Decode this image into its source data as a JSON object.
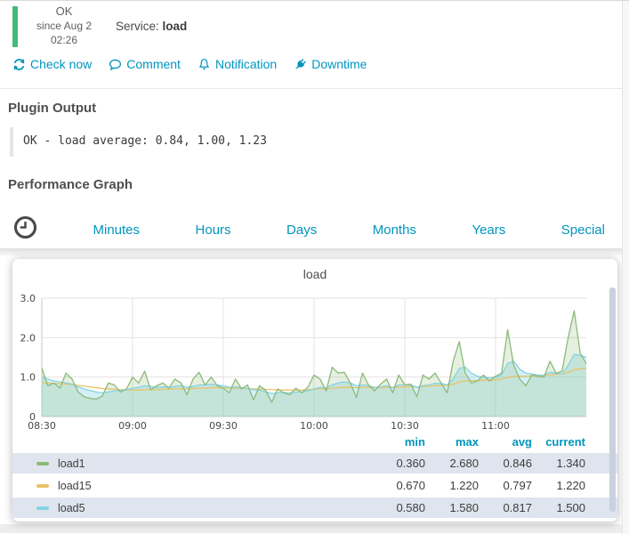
{
  "colors": {
    "status_green": "#44bb77",
    "link_blue": "#0095bf",
    "legend_row_bg": "#dfe5ee"
  },
  "status": {
    "state": "OK",
    "since_line1": "since Aug 2",
    "since_line2": "02:26",
    "service_label": "Service:",
    "service_name": "load"
  },
  "actions": [
    {
      "label": "Check now",
      "icon": "refresh-icon"
    },
    {
      "label": "Comment",
      "icon": "comment-icon"
    },
    {
      "label": "Notification",
      "icon": "bell-icon"
    },
    {
      "label": "Downtime",
      "icon": "plug-icon"
    }
  ],
  "plugin_output": {
    "heading": "Plugin Output",
    "text": "OK - load average: 0.84, 1.00, 1.23"
  },
  "performance": {
    "heading": "Performance Graph",
    "clock_icon": "clock-icon",
    "tabs": [
      "Minutes",
      "Hours",
      "Days",
      "Months",
      "Years",
      "Special"
    ]
  },
  "chart_data": {
    "type": "area",
    "title": "load",
    "xlabel": "",
    "ylabel": "",
    "ylim": [
      0,
      3.0
    ],
    "y_ticks": [
      3.0,
      2.0,
      1.0,
      0
    ],
    "y_tick_labels": [
      "3.0",
      "2.0",
      "1.0",
      "0"
    ],
    "x_range_hours": [
      8.5,
      11.5
    ],
    "x_tick_hours": [
      8.5,
      9.0,
      9.5,
      10.0,
      10.5,
      11.0
    ],
    "x_tick_labels": [
      "08:30",
      "09:00",
      "09:30",
      "10:00",
      "10:30",
      "11:00"
    ],
    "x_step_minutes": 2,
    "grid": true,
    "legend_position": "bottom-table",
    "series": [
      {
        "name": "load1",
        "z": 3,
        "color": "#8cba78",
        "fill": "rgba(140,186,120,0.22)",
        "values": [
          1.22,
          0.78,
          0.85,
          0.72,
          1.1,
          0.95,
          0.62,
          0.5,
          0.46,
          0.44,
          0.52,
          0.85,
          0.8,
          0.62,
          0.7,
          1.0,
          0.85,
          1.15,
          0.68,
          0.78,
          0.85,
          0.72,
          0.95,
          0.85,
          0.55,
          0.95,
          1.12,
          0.8,
          1.0,
          0.78,
          0.72,
          0.6,
          0.95,
          0.7,
          0.8,
          0.42,
          0.78,
          0.66,
          0.36,
          0.7,
          0.6,
          0.55,
          0.72,
          0.6,
          0.75,
          1.05,
          0.95,
          0.65,
          1.25,
          1.1,
          1.12,
          0.85,
          0.48,
          1.1,
          0.8,
          0.65,
          0.82,
          0.95,
          0.6,
          1.05,
          0.8,
          0.82,
          0.5,
          1.05,
          0.95,
          1.1,
          0.85,
          0.6,
          1.4,
          1.9,
          1.1,
          0.85,
          0.9,
          1.05,
          0.9,
          1.02,
          1.1,
          2.2,
          1.3,
          0.95,
          0.78,
          1.05,
          1.02,
          1.0,
          1.4,
          1.1,
          1.15,
          2.0,
          2.68,
          1.6,
          1.34
        ]
      },
      {
        "name": "load15",
        "z": 1,
        "color": "#e9c268",
        "fill": "none",
        "values": [
          0.86,
          0.85,
          0.84,
          0.83,
          0.82,
          0.81,
          0.79,
          0.77,
          0.75,
          0.73,
          0.71,
          0.7,
          0.69,
          0.68,
          0.68,
          0.67,
          0.67,
          0.68,
          0.68,
          0.68,
          0.69,
          0.69,
          0.7,
          0.7,
          0.7,
          0.71,
          0.72,
          0.72,
          0.73,
          0.73,
          0.73,
          0.72,
          0.72,
          0.72,
          0.71,
          0.7,
          0.7,
          0.69,
          0.68,
          0.68,
          0.67,
          0.67,
          0.67,
          0.67,
          0.68,
          0.69,
          0.7,
          0.7,
          0.72,
          0.73,
          0.74,
          0.74,
          0.73,
          0.74,
          0.74,
          0.73,
          0.73,
          0.74,
          0.74,
          0.75,
          0.75,
          0.76,
          0.75,
          0.76,
          0.77,
          0.78,
          0.79,
          0.79,
          0.82,
          0.87,
          0.9,
          0.91,
          0.91,
          0.92,
          0.92,
          0.93,
          0.95,
          0.99,
          1.02,
          1.02,
          1.02,
          1.03,
          1.03,
          1.04,
          1.06,
          1.07,
          1.08,
          1.12,
          1.18,
          1.21,
          1.22
        ]
      },
      {
        "name": "load5",
        "z": 2,
        "color": "#85d3e4",
        "fill": "rgba(133,211,228,0.35)",
        "values": [
          1.0,
          0.95,
          0.9,
          0.88,
          0.85,
          0.82,
          0.75,
          0.7,
          0.66,
          0.62,
          0.6,
          0.62,
          0.65,
          0.66,
          0.68,
          0.72,
          0.74,
          0.78,
          0.76,
          0.74,
          0.75,
          0.74,
          0.76,
          0.78,
          0.74,
          0.76,
          0.8,
          0.8,
          0.82,
          0.8,
          0.78,
          0.74,
          0.75,
          0.73,
          0.72,
          0.68,
          0.67,
          0.63,
          0.58,
          0.6,
          0.61,
          0.6,
          0.62,
          0.62,
          0.65,
          0.7,
          0.74,
          0.72,
          0.8,
          0.85,
          0.88,
          0.85,
          0.78,
          0.8,
          0.78,
          0.74,
          0.75,
          0.78,
          0.74,
          0.8,
          0.8,
          0.8,
          0.74,
          0.78,
          0.8,
          0.84,
          0.84,
          0.8,
          0.95,
          1.22,
          1.25,
          1.1,
          1.02,
          1.0,
          0.98,
          1.0,
          1.05,
          1.35,
          1.4,
          1.2,
          1.1,
          1.08,
          1.05,
          1.05,
          1.12,
          1.1,
          1.08,
          1.3,
          1.58,
          1.55,
          1.5
        ]
      }
    ],
    "legend": {
      "columns": [
        "min",
        "max",
        "avg",
        "current"
      ],
      "rows": [
        {
          "name": "load1",
          "color": "#8cba78",
          "min": "0.360",
          "max": "2.680",
          "avg": "0.846",
          "current": "1.340"
        },
        {
          "name": "load15",
          "color": "#e9c268",
          "min": "0.670",
          "max": "1.220",
          "avg": "0.797",
          "current": "1.220"
        },
        {
          "name": "load5",
          "color": "#85d3e4",
          "min": "0.580",
          "max": "1.580",
          "avg": "0.817",
          "current": "1.500"
        }
      ]
    }
  }
}
